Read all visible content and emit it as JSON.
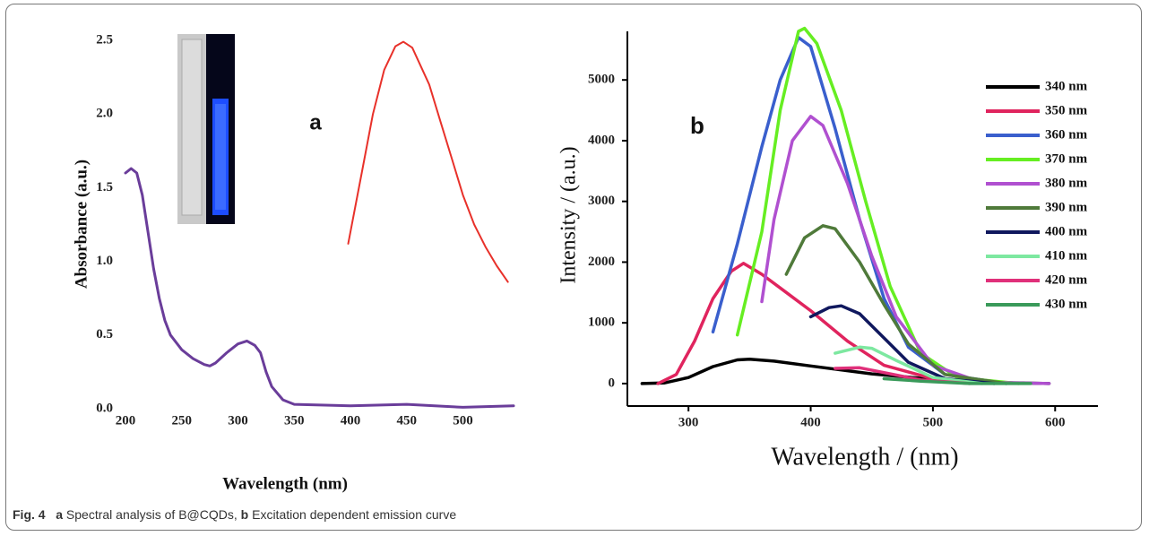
{
  "chart_data": [
    {
      "type": "line",
      "annotation": "a",
      "ylabel": "Absorbance (a.u.)",
      "xlabel": "Wavelength (nm)",
      "xlim": [
        200,
        545
      ],
      "ylim": [
        0,
        2.5
      ],
      "xticks": [
        200,
        250,
        300,
        350,
        400,
        450,
        500
      ],
      "yticks": [
        {
          "value": 0,
          "label": "0.0"
        },
        0.5,
        {
          "value": 1,
          "label": "1.0"
        },
        1.5,
        {
          "value": 2,
          "label": "2.0"
        },
        2.5
      ],
      "grid": false,
      "series": [
        {
          "color": "#6a3d9a",
          "x": [
            200,
            205,
            210,
            215,
            220,
            225,
            230,
            235,
            240,
            250,
            260,
            270,
            275,
            280,
            290,
            300,
            308,
            315,
            320,
            325,
            330,
            340,
            350,
            400,
            450,
            500,
            545
          ],
          "values": [
            1.6,
            1.63,
            1.6,
            1.45,
            1.2,
            0.95,
            0.75,
            0.6,
            0.5,
            0.4,
            0.34,
            0.3,
            0.29,
            0.31,
            0.38,
            0.44,
            0.46,
            0.43,
            0.38,
            0.25,
            0.15,
            0.06,
            0.03,
            0.02,
            0.03,
            0.01,
            0.02
          ]
        },
        {
          "color": "#e8312a",
          "x": [
            398,
            410,
            420,
            430,
            440,
            447,
            455,
            470,
            480,
            490,
            500,
            510,
            520,
            530,
            540
          ],
          "values": [
            1.12,
            1.6,
            2.0,
            2.3,
            2.46,
            2.49,
            2.45,
            2.2,
            1.95,
            1.7,
            1.45,
            1.25,
            1.1,
            0.97,
            0.86
          ]
        }
      ]
    },
    {
      "type": "line",
      "annotation": "b",
      "ylabel": "Intensity / (a.u.)",
      "xlabel": "Wavelength / (nm)",
      "xlim": [
        250,
        635
      ],
      "ylim": [
        -370,
        5800
      ],
      "xticks": [
        300,
        400,
        500,
        600
      ],
      "yticks": [
        0,
        1000,
        2000,
        3000,
        4000,
        5000
      ],
      "grid": false,
      "legend": "upper right",
      "series": [
        {
          "name": "340 nm",
          "color": "#000000",
          "x": [
            262,
            280,
            300,
            320,
            340,
            350,
            370,
            400,
            450,
            500,
            550,
            595
          ],
          "values": [
            0,
            10,
            100,
            280,
            390,
            400,
            370,
            290,
            160,
            70,
            20,
            0
          ]
        },
        {
          "name": "350 nm",
          "color": "#e0245e",
          "x": [
            275,
            290,
            305,
            320,
            335,
            345,
            360,
            380,
            400,
            430,
            460,
            500,
            540
          ],
          "values": [
            0,
            150,
            700,
            1400,
            1850,
            1980,
            1800,
            1500,
            1200,
            700,
            300,
            80,
            10
          ]
        },
        {
          "name": "360 nm",
          "color": "#3a5fcd",
          "x": [
            320,
            340,
            360,
            375,
            390,
            400,
            420,
            440,
            460,
            480,
            510,
            560
          ],
          "values": [
            850,
            2300,
            3900,
            5000,
            5700,
            5550,
            4200,
            2700,
            1400,
            600,
            150,
            0
          ]
        },
        {
          "name": "370 nm",
          "color": "#66ee22",
          "x": [
            340,
            360,
            375,
            390,
            395,
            405,
            425,
            445,
            465,
            490,
            520,
            570
          ],
          "values": [
            800,
            2500,
            4500,
            5800,
            5850,
            5600,
            4500,
            3000,
            1600,
            500,
            100,
            0
          ]
        },
        {
          "name": "380 nm",
          "color": "#b050d0",
          "x": [
            360,
            370,
            385,
            400,
            410,
            430,
            450,
            470,
            500,
            540,
            595
          ],
          "values": [
            1350,
            2700,
            4000,
            4400,
            4250,
            3300,
            2100,
            1100,
            300,
            20,
            0
          ]
        },
        {
          "name": "390 nm",
          "color": "#4f7a3a",
          "x": [
            380,
            395,
            410,
            420,
            440,
            460,
            480,
            510,
            560
          ],
          "values": [
            1800,
            2400,
            2600,
            2550,
            2000,
            1300,
            650,
            150,
            0
          ]
        },
        {
          "name": "400 nm",
          "color": "#10185e",
          "x": [
            400,
            415,
            425,
            440,
            460,
            480,
            510,
            550
          ],
          "values": [
            1100,
            1250,
            1280,
            1150,
            750,
            350,
            80,
            0
          ]
        },
        {
          "name": "410 nm",
          "color": "#7de8a0",
          "x": [
            420,
            440,
            450,
            470,
            500,
            540
          ],
          "values": [
            500,
            600,
            580,
            380,
            100,
            0
          ]
        },
        {
          "name": "420 nm",
          "color": "#e0307a",
          "x": [
            420,
            440,
            460,
            490,
            530
          ],
          "values": [
            250,
            260,
            180,
            60,
            0
          ]
        },
        {
          "name": "430 nm",
          "color": "#3a9a5a",
          "x": [
            460,
            490,
            530,
            580
          ],
          "values": [
            80,
            40,
            0,
            0
          ]
        }
      ]
    }
  ],
  "caption": {
    "label": "Fig. 4",
    "a": "a",
    "a_text": "Spectral analysis of B@CQDs,",
    "b": "b",
    "b_text": "Excitation dependent emission curve"
  }
}
